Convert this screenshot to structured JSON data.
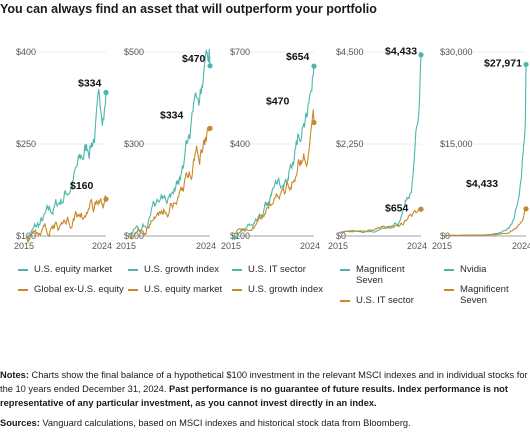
{
  "title": "You can always find an asset that will outperform your portfolio",
  "colors": {
    "teal": "#4db6ac",
    "gold": "#c8892b",
    "axis": "#8a8a8a",
    "grid": "#d9d9d9"
  },
  "chart_data": [
    {
      "type": "line",
      "x": [
        2015,
        2024
      ],
      "xticks": [
        "2015",
        "2024"
      ],
      "yticks": [
        "$400",
        "$250",
        "$100"
      ],
      "ylim": [
        100,
        400
      ],
      "series": [
        {
          "name": "U.S. equity market",
          "color": "#4db6ac",
          "end_value": 334,
          "end_label": "$334"
        },
        {
          "name": "Global ex-U.S. equity",
          "color": "#c8892b",
          "end_value": 160,
          "end_label": "$160"
        }
      ]
    },
    {
      "type": "line",
      "x": [
        2015,
        2024
      ],
      "xticks": [
        "2015",
        "2024"
      ],
      "yticks": [
        "$500",
        "$300",
        "$100"
      ],
      "ylim": [
        100,
        500
      ],
      "series": [
        {
          "name": "U.S. growth index",
          "color": "#4db6ac",
          "end_value": 470,
          "end_label": "$470"
        },
        {
          "name": "U.S. equity market",
          "color": "#c8892b",
          "end_value": 334,
          "end_label": "$334"
        }
      ]
    },
    {
      "type": "line",
      "x": [
        2015,
        2024
      ],
      "xticks": [
        "2015",
        "2024"
      ],
      "yticks": [
        "$700",
        "$400",
        "$100"
      ],
      "ylim": [
        100,
        700
      ],
      "series": [
        {
          "name": "U.S. IT sector",
          "color": "#4db6ac",
          "end_value": 654,
          "end_label": "$654"
        },
        {
          "name": "U.S. growth index",
          "color": "#c8892b",
          "end_value": 470,
          "end_label": "$470"
        }
      ]
    },
    {
      "type": "line",
      "x": [
        2015,
        2024
      ],
      "xticks": [
        "2015",
        "2024"
      ],
      "yticks": [
        "$4,500",
        "$2,250",
        "$0"
      ],
      "ylim": [
        0,
        4500
      ],
      "series": [
        {
          "name": "Magnificent Seven",
          "color": "#4db6ac",
          "end_value": 4433,
          "end_label": "$4,433"
        },
        {
          "name": "U.S. IT sector",
          "color": "#c8892b",
          "end_value": 654,
          "end_label": "$654"
        }
      ]
    },
    {
      "type": "line",
      "x": [
        2015,
        2024
      ],
      "xticks": [
        "2015",
        "2024"
      ],
      "yticks": [
        "$30,000",
        "$15,000",
        "$0"
      ],
      "ylim": [
        0,
        30000
      ],
      "series": [
        {
          "name": "Nvidia",
          "color": "#4db6ac",
          "end_value": 27971,
          "end_label": "$27,971"
        },
        {
          "name": "Magnificent Seven",
          "color": "#c8892b",
          "end_value": 4433,
          "end_label": "$4,433"
        }
      ]
    }
  ],
  "legends": [
    [
      "U.S. equity market",
      "Global ex-U.S. equity"
    ],
    [
      "U.S. growth index",
      "U.S. equity market"
    ],
    [
      "U.S. IT sector",
      "U.S. growth index"
    ],
    [
      "Magnificent Seven",
      "U.S. IT sector"
    ],
    [
      "Nvidia",
      "Magnificent Seven"
    ]
  ],
  "notes": {
    "label": "Notes:",
    "text": " Charts show the final balance of a hypothetical $100 investment in the relevant MSCI indexes and in individual stocks for the 10 years ended December 31, 2024. ",
    "bold": "Past performance is no guarantee of future results. Index performance is not representative of any particular investment, as you cannot invest directly in an index."
  },
  "sources": {
    "label": "Sources:",
    "text": " Vanguard calculations, based on MSCI indexes and historical stock data from Bloomberg."
  }
}
